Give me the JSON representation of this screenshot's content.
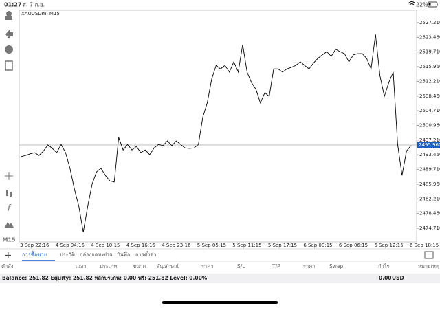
{
  "status_bar": {
    "time": "01:27",
    "date": "ส. 7 ก.ย.",
    "battery": "22%"
  },
  "chart_data": {
    "type": "line",
    "title": "XAUUSDm, M15",
    "color": "#000000",
    "categories": [
      null,
      null,
      null,
      "3 Sep 22:16",
      null,
      null,
      null,
      null,
      null,
      null,
      null,
      "4 Sep 04:15",
      null,
      null,
      null,
      null,
      null,
      null,
      null,
      "4 Sep 10:15",
      null,
      null,
      null,
      null,
      null,
      null,
      null,
      "4 Sep 16:15",
      null,
      null,
      null,
      null,
      null,
      null,
      null,
      "4 Sep 23:16",
      null,
      null,
      null,
      null,
      null,
      null,
      null,
      "5 Sep 05:15",
      null,
      null,
      null,
      null,
      null,
      null,
      null,
      "5 Sep 11:15",
      null,
      null,
      null,
      null,
      null,
      null,
      null,
      "5 Sep 17:15",
      null,
      null,
      null,
      null,
      null,
      null,
      null,
      "6 Sep 00:15",
      null,
      null,
      null,
      null,
      null,
      null,
      null,
      "6 Sep 06:15",
      null,
      null,
      null,
      null,
      null,
      null,
      null,
      "6 Sep 12:15",
      null,
      null,
      null,
      null,
      null,
      null,
      null,
      "6 Sep 18:15"
    ],
    "values": [
      2493.0,
      2493.3,
      2493.7,
      2494.0,
      2493.3,
      2494.4,
      2496.0,
      2495.1,
      2494.0,
      2496.1,
      2494.0,
      2490.0,
      2484.7,
      2480.3,
      2473.7,
      2480.3,
      2486.0,
      2489.1,
      2490.0,
      2488.2,
      2486.8,
      2486.5,
      2497.9,
      2494.7,
      2496.1,
      2494.7,
      2495.6,
      2494.0,
      2494.7,
      2493.5,
      2495.2,
      2496.1,
      2495.8,
      2497.0,
      2495.8,
      2497.0,
      2496.1,
      2495.2,
      2495.1,
      2495.2,
      2496.1,
      2503.1,
      2506.7,
      2512.8,
      2516.3,
      2515.4,
      2516.3,
      2514.6,
      2517.2,
      2514.6,
      2521.6,
      2514.6,
      2511.9,
      2510.2,
      2506.7,
      2509.3,
      2508.4,
      2515.4,
      2515.4,
      2514.6,
      2515.4,
      2515.8,
      2516.3,
      2517.2,
      2516.3,
      2515.4,
      2516.9,
      2518.1,
      2519.0,
      2519.8,
      2518.6,
      2520.4,
      2519.8,
      2519.3,
      2517.2,
      2519.0,
      2519.3,
      2519.3,
      2518.1,
      2515.4,
      2524.2,
      2513.7,
      2508.4,
      2511.9,
      2514.6,
      2496.1,
      2488.2,
      2494.4,
      2495.8,
      null,
      null,
      null
    ],
    "ylim": [
      2471.2,
      2530.37
    ],
    "yticks": [
      {
        "value": 2474.71,
        "label": "2474.710"
      },
      {
        "value": 2478.46,
        "label": "2478.460"
      },
      {
        "value": 2482.21,
        "label": "2482.210"
      },
      {
        "value": 2485.96,
        "label": "2485.960"
      },
      {
        "value": 2489.71,
        "label": "2489.710"
      },
      {
        "value": 2493.46,
        "label": "2493.460"
      },
      {
        "value": 2497.21,
        "label": "2497.210"
      },
      {
        "value": 2500.96,
        "label": "2500.960"
      },
      {
        "value": 2504.71,
        "label": "2504.710"
      },
      {
        "value": 2508.46,
        "label": "2508.460"
      },
      {
        "value": 2512.21,
        "label": "2512.210"
      },
      {
        "value": 2515.96,
        "label": "2515.960"
      },
      {
        "value": 2519.71,
        "label": "2519.710"
      },
      {
        "value": 2523.46,
        "label": "2523.460"
      },
      {
        "value": 2527.21,
        "label": "2527.210"
      }
    ],
    "current_price": {
      "value": 2495.96,
      "label": "2495.960"
    }
  },
  "sidebar": {
    "timeframe": "M15"
  },
  "tabs": [
    "การซื้อขาย",
    "ประวัติ",
    "กล่องจดหมาย",
    "ข่าว",
    "บันทึก",
    "การตั้งค่า"
  ],
  "table": {
    "headers": [
      "คำสั่ง",
      "เวลา",
      "ประเภท",
      "ขนาด",
      "สัญลักษณ์",
      "ราคา",
      "S/L",
      "T/P",
      "ราคา",
      "Swap",
      "กำไร",
      "หมายเหตุ"
    ]
  },
  "account": {
    "summary": "Balance: 251.82 Equity: 251.82 หลักประกัน: 0.00 ฟรี: 251.82 Level: 0.00%",
    "profit": "0.00",
    "currency": "USD"
  }
}
